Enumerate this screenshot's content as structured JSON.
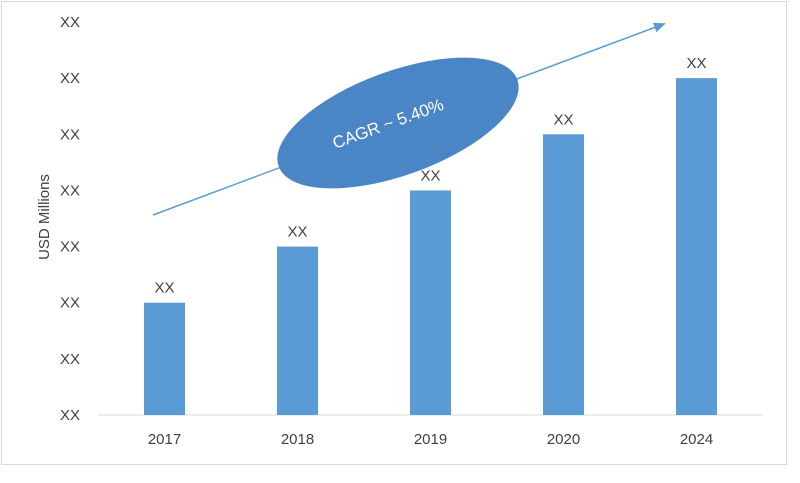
{
  "chart_data": {
    "type": "bar",
    "title": "",
    "xlabel": "",
    "ylabel": "USD Millions",
    "categories": [
      "2017",
      "2018",
      "2019",
      "2020",
      "2024"
    ],
    "values": [
      2,
      3,
      4,
      5,
      6
    ],
    "ylim": [
      0,
      7
    ],
    "y_tick_labels": [
      "XX",
      "XX",
      "XX",
      "XX",
      "XX",
      "XX",
      "XX",
      "XX"
    ],
    "data_labels": [
      "XX",
      "XX",
      "XX",
      "XX",
      "XX"
    ],
    "grid": false,
    "legend": "none",
    "annotation": "CAGR ~ 5.40%",
    "colors": {
      "bar": "#5b9bd5",
      "ellipse": "#4a86c6",
      "arrow": "#5b9bd5",
      "text": "#404040",
      "axis": "#d9d9d9"
    }
  }
}
